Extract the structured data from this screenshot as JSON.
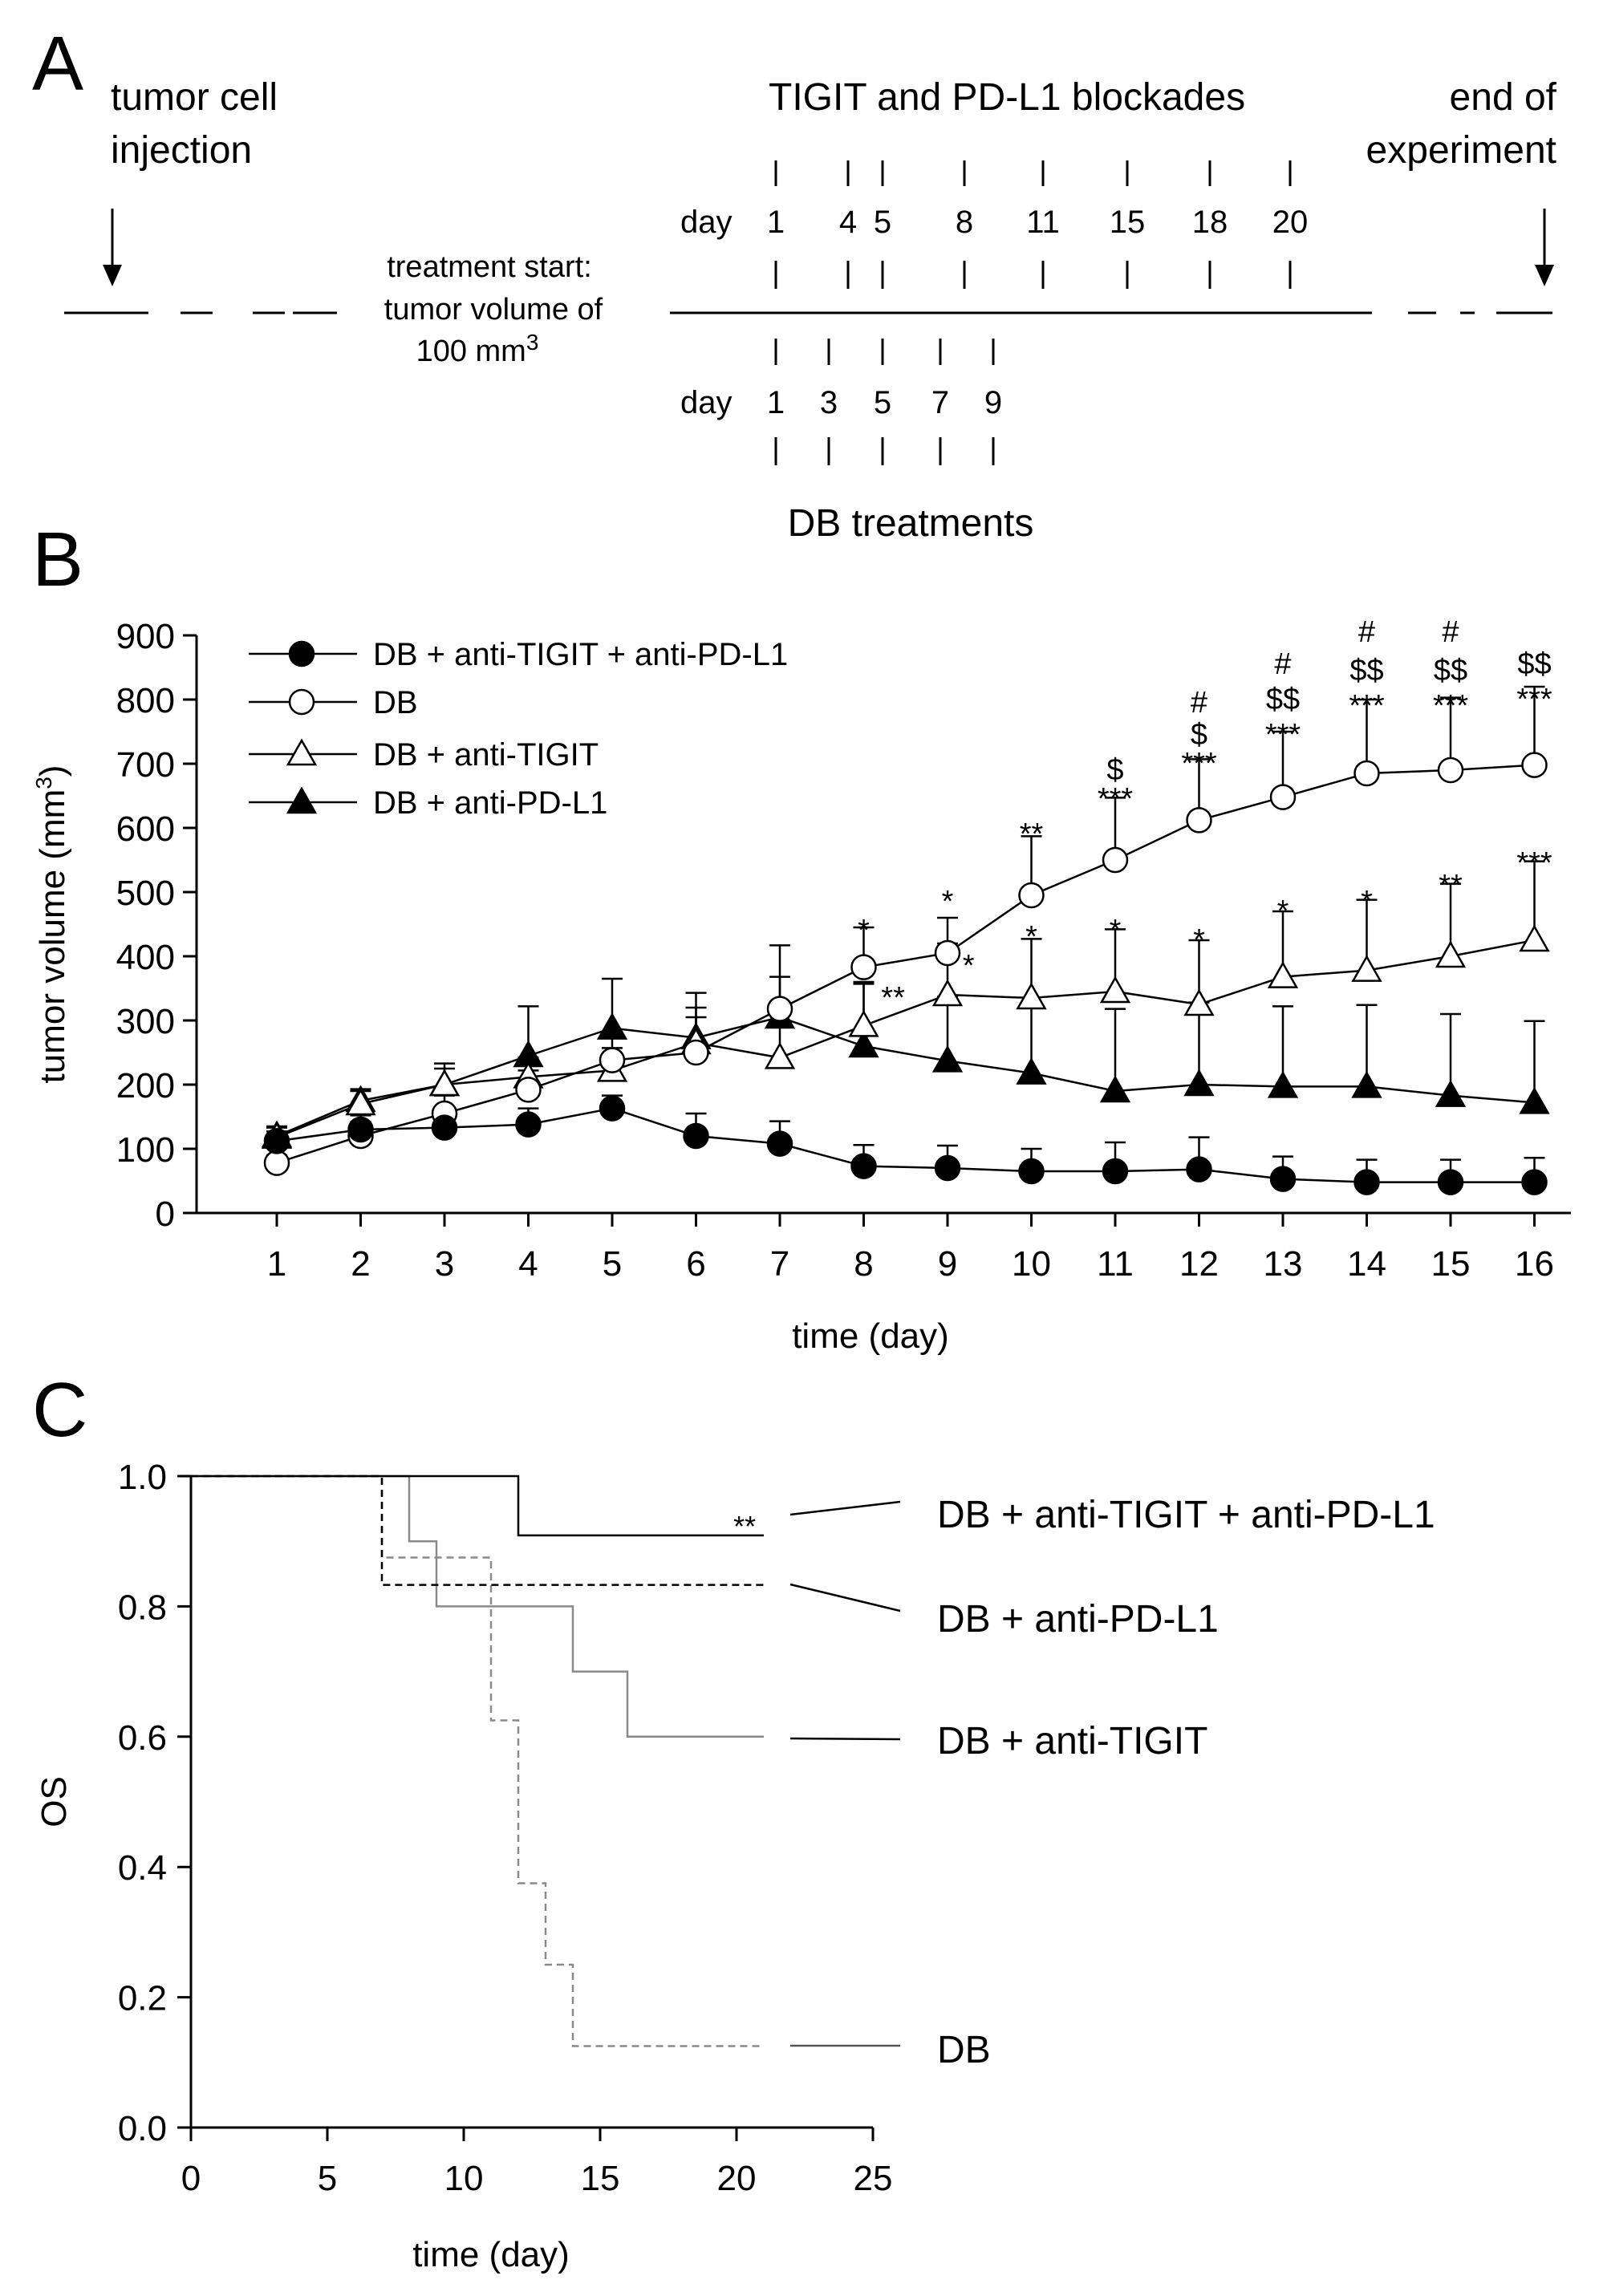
{
  "panel_a": {
    "label": "A",
    "tumor_injection": [
      "tumor cell",
      "injection"
    ],
    "end_experiment": [
      "end of",
      "experiment"
    ],
    "blockade_title": "TIGIT and PD-L1 blockades",
    "day_label": "day",
    "blockade_days": [
      "1",
      "4",
      "5",
      "8",
      "11",
      "15",
      "18",
      "20"
    ],
    "treatment_start": [
      "treatment start:",
      "tumor volume  of",
      "100 mm"
    ],
    "treatment_start_sup": "3",
    "db_days": [
      "1",
      "3",
      "5",
      "7",
      "9"
    ],
    "db_title": "DB treatments"
  },
  "chart_data": [
    {
      "panel": "B",
      "type": "line",
      "xlabel": "time (day)",
      "ylabel": "tumor volume (mm",
      "ylabel_sup": "3",
      "ylabel_end": ")",
      "xlim": [
        0,
        16.3
      ],
      "ylim": [
        0,
        900
      ],
      "x_ticks": [
        "1",
        "2",
        "3",
        "4",
        "5",
        "6",
        "7",
        "8",
        "9",
        "10",
        "11",
        "12",
        "13",
        "14",
        "15",
        "16"
      ],
      "y_ticks": [
        "0",
        "100",
        "200",
        "300",
        "400",
        "500",
        "600",
        "700",
        "800",
        "900"
      ],
      "legend_position": "top-left",
      "x": [
        1,
        2,
        3,
        4,
        5,
        6,
        7,
        8,
        9,
        10,
        11,
        12,
        13,
        14,
        15,
        16
      ],
      "series": [
        {
          "name": "DB + anti-TIGIT   + anti-PD-L1",
          "marker": "filled-circle",
          "values": [
            112,
            130,
            133,
            138,
            163,
            120,
            108,
            73,
            70,
            65,
            65,
            68,
            53,
            48,
            48,
            48
          ],
          "errors": [
            15,
            22,
            25,
            25,
            20,
            35,
            35,
            33,
            35,
            35,
            45,
            50,
            35,
            35,
            35,
            38
          ]
        },
        {
          "name": "DB",
          "marker": "open-circle",
          "values": [
            78,
            120,
            155,
            192,
            238,
            250,
            318,
            383,
            405,
            495,
            550,
            612,
            648,
            685,
            690,
            698
          ],
          "errors": [
            12,
            22,
            28,
            30,
            35,
            55,
            50,
            62,
            55,
            92,
            97,
            95,
            102,
            115,
            113,
            122
          ]
        },
        {
          "name": "DB + anti-TIGIT",
          "marker": "open-triangle",
          "values": [
            118,
            170,
            200,
            212,
            222,
            265,
            242,
            292,
            340,
            335,
            345,
            325,
            368,
            378,
            400,
            425
          ],
          "errors": [
            15,
            20,
            25,
            30,
            35,
            55,
            75,
            65,
            80,
            92,
            97,
            100,
            102,
            110,
            113,
            123
          ]
        },
        {
          "name": "DB + anti-PD-L1",
          "marker": "filled-triangle",
          "values": [
            120,
            175,
            200,
            245,
            288,
            273,
            305,
            260,
            237,
            218,
            190,
            200,
            197,
            197,
            183,
            172
          ],
          "errors": [
            15,
            18,
            33,
            77,
            77,
            70,
            112,
            100,
            100,
            110,
            128,
            128,
            125,
            127,
            127,
            127
          ]
        }
      ],
      "annotations": [
        {
          "x": 8,
          "y": 440,
          "text": "*"
        },
        {
          "x": 9,
          "y": 485,
          "text": "*"
        },
        {
          "x": 9.25,
          "y": 385,
          "text": "*"
        },
        {
          "x": 8.35,
          "y": 335,
          "text": "**"
        },
        {
          "x": 10,
          "y": 590,
          "text": "**"
        },
        {
          "x": 10,
          "y": 430,
          "text": "*"
        },
        {
          "x": 11,
          "y": 645,
          "text": "***"
        },
        {
          "x": 11,
          "y": 690,
          "text": "$"
        },
        {
          "x": 11,
          "y": 440,
          "text": "*"
        },
        {
          "x": 12,
          "y": 700,
          "text": "***"
        },
        {
          "x": 12,
          "y": 745,
          "text": "$"
        },
        {
          "x": 12,
          "y": 795,
          "text": "#"
        },
        {
          "x": 12,
          "y": 425,
          "text": "*"
        },
        {
          "x": 13,
          "y": 745,
          "text": "***"
        },
        {
          "x": 13,
          "y": 800,
          "text": "$$"
        },
        {
          "x": 13,
          "y": 855,
          "text": "#"
        },
        {
          "x": 13,
          "y": 470,
          "text": "*"
        },
        {
          "x": 14,
          "y": 790,
          "text": "***"
        },
        {
          "x": 14,
          "y": 845,
          "text": "$$"
        },
        {
          "x": 14,
          "y": 905,
          "text": "#"
        },
        {
          "x": 14,
          "y": 485,
          "text": "*"
        },
        {
          "x": 15,
          "y": 790,
          "text": "***"
        },
        {
          "x": 15,
          "y": 845,
          "text": "$$"
        },
        {
          "x": 15,
          "y": 905,
          "text": "#"
        },
        {
          "x": 15,
          "y": 510,
          "text": "**"
        },
        {
          "x": 16,
          "y": 800,
          "text": "***"
        },
        {
          "x": 16,
          "y": 855,
          "text": "$$"
        },
        {
          "x": 16,
          "y": 545,
          "text": "***"
        }
      ]
    },
    {
      "panel": "C",
      "type": "line",
      "subtype": "kaplan-meier",
      "xlabel": "time (day)",
      "ylabel": "OS",
      "xlim": [
        0,
        25
      ],
      "ylim": [
        0,
        1.0
      ],
      "x_ticks": [
        "0",
        "5",
        "10",
        "15",
        "20",
        "25"
      ],
      "y_ticks": [
        "0.0",
        "0.2",
        "0.4",
        "0.6",
        "0.8",
        "1.0"
      ],
      "legend_position": "right",
      "series": [
        {
          "name": "DB + anti-TIGIT  + anti-PD-L1",
          "style": "solid-black",
          "steps": [
            [
              0,
              1.0
            ],
            [
              12,
              0.909
            ],
            [
              21,
              0.909
            ]
          ]
        },
        {
          "name": "DB + anti-PD-L1",
          "style": "dashed-black",
          "steps": [
            [
              0,
              1.0
            ],
            [
              7,
              0.833
            ],
            [
              21,
              0.833
            ]
          ]
        },
        {
          "name": "DB + anti-TIGIT",
          "style": "solid-gray",
          "steps": [
            [
              0,
              1.0
            ],
            [
              8,
              0.9
            ],
            [
              9,
              0.8
            ],
            [
              12,
              0.8
            ],
            [
              14,
              0.7
            ],
            [
              16,
              0.6
            ],
            [
              21,
              0.6
            ]
          ]
        },
        {
          "name": "DB",
          "style": "dashed-gray",
          "steps": [
            [
              0,
              1.0
            ],
            [
              7,
              0.875
            ],
            [
              11,
              0.625
            ],
            [
              12,
              0.375
            ],
            [
              13,
              0.25
            ],
            [
              14,
              0.125
            ],
            [
              21,
              0.125
            ]
          ]
        }
      ],
      "annotations": [
        {
          "x": 20.3,
          "y": 0.92,
          "text": "**"
        }
      ]
    }
  ]
}
